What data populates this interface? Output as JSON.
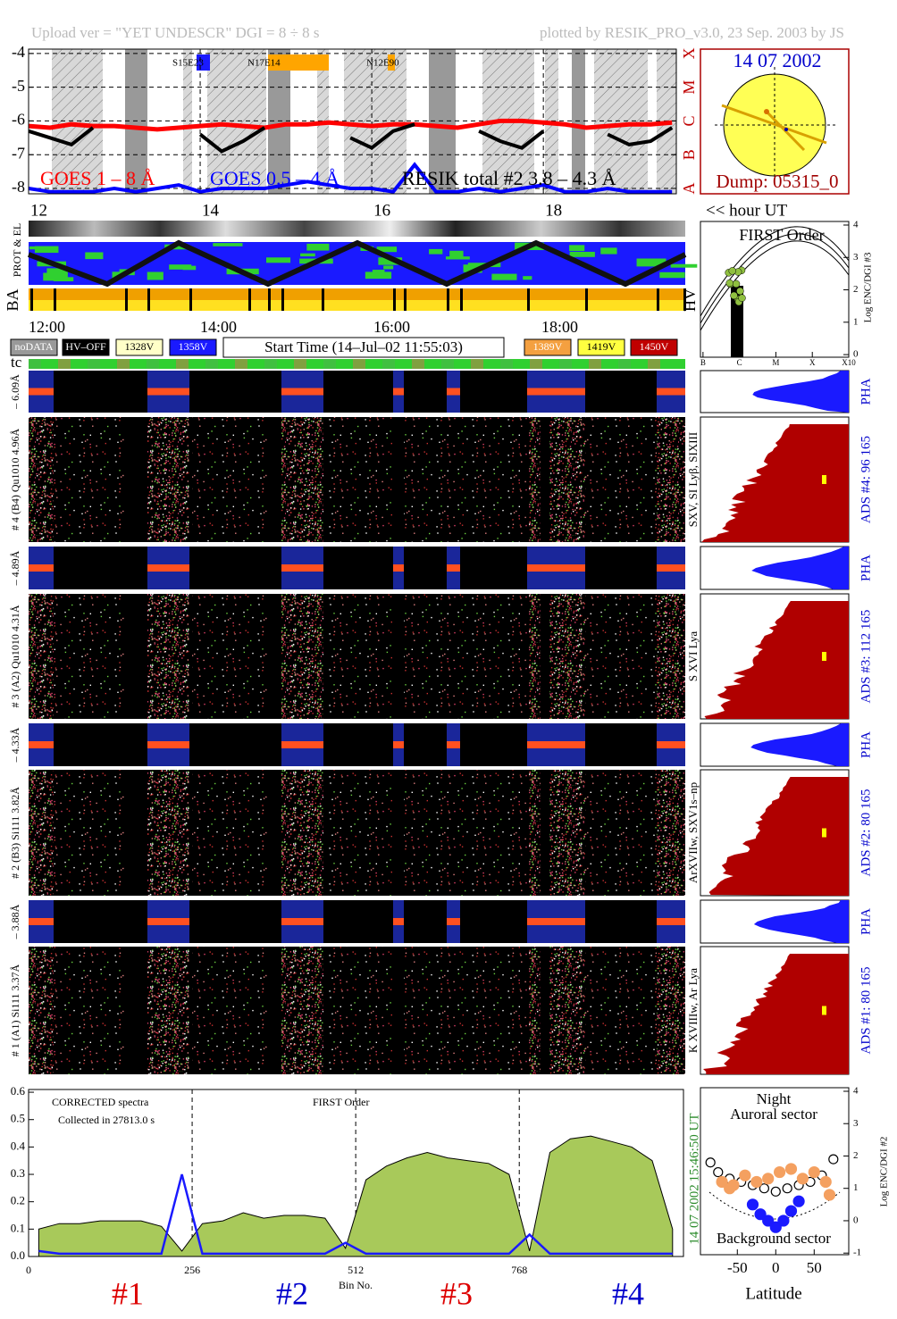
{
  "header": {
    "upload": "Upload ver = \"YET UNDESCR\"  DGI =   8 ÷   8 s",
    "plotted": "plotted by RESIK_PRO_v3.0, 23 Sep. 2003 by JS"
  },
  "sun": {
    "date": "14 07 2002",
    "dump": "Dump: 05315_0"
  },
  "hour_ut": "<< hour UT",
  "strips": {
    "prot": "PROT & EL",
    "ba": "BA",
    "tc": "tc",
    "hv": "HV"
  },
  "time_axis": [
    "12:00",
    "14:00",
    "16:00",
    "18:00"
  ],
  "legend": [
    "noDATA",
    "HV–OFF",
    "1328V",
    "1358V",
    "1389V",
    "1419V",
    "1450V"
  ],
  "start_time": "Start Time (14–Jul–02 11:55:03)",
  "channels": [
    "– 6.09Å",
    "# 4 (B4) Qu1010 4.96Å",
    "– 4.89Å",
    "# 3 (A2) Qu1010 4.31Å",
    "– 4.33Å",
    "# 2 (B3) Si111 3.82Å",
    "– 3.88Å",
    "# 1 (A1) Si111 3.37Å"
  ],
  "pha": [
    "PHA",
    "PHA",
    "PHA",
    "PHA"
  ],
  "ads": [
    "ADS #4:   96 165",
    "ADS #3:   112 165",
    "ADS #2:   80 165",
    "ADS #1:   80 165"
  ],
  "lines": [
    "SXV, SI Lyβ, SIXIII",
    "S XVI Lya",
    "ArXVIIw, SXV1s–np",
    "K XVIIIw, Ar Lya"
  ],
  "timestamp": [
    "15:46:50 UT",
    "14 07 2002"
  ],
  "chart_data": [
    {
      "type": "line",
      "annotations": [
        "S15E23",
        "N17E14",
        "N12E90"
      ],
      "x": [
        12,
        12.25,
        12.5,
        12.75,
        13,
        13.25,
        13.5,
        13.75,
        14,
        14.25,
        14.5,
        14.75,
        15,
        15.25,
        15.5,
        15.75,
        16,
        16.25,
        16.5,
        16.75,
        17,
        17.25,
        17.5,
        17.75,
        18,
        18.25,
        18.5,
        18.75,
        19,
        19.25,
        19.5
      ],
      "series": [
        {
          "name": "GOES 1 – 8 Å",
          "color": "#ff0000",
          "values": [
            -6.15,
            -6.2,
            -6.1,
            -6.15,
            -6.15,
            -6.2,
            -6.25,
            -6.2,
            -6.15,
            -6.1,
            -6.15,
            -6.2,
            -6.1,
            -6.1,
            -6.05,
            -6.1,
            -6.15,
            -6.1,
            -6.1,
            -6.15,
            -6.2,
            -6.1,
            -6.0,
            -6.0,
            -6.05,
            -6.1,
            -6.2,
            -6.15,
            -6.1,
            -6.1,
            -6.05
          ]
        },
        {
          "name": "GOES 0.5 – 4 Å",
          "color": "#0000ff",
          "values": [
            -8.0,
            -8.1,
            -8.1,
            -8.1,
            -8.0,
            -8.1,
            -8.0,
            -7.9,
            -8.1,
            -8.0,
            -8.0,
            -8.0,
            -7.9,
            -7.8,
            -7.9,
            -8.0,
            -8.0,
            -8.1,
            -7.3,
            -8.1,
            -8.1,
            -8.0,
            -8.1,
            -8.0,
            -7.9,
            -8.1,
            -8.1,
            -8.0,
            -8.1,
            -8.1,
            -8.1
          ]
        },
        {
          "name": "RESIK total #2  3.8 – 4.3 Å",
          "color": "#000000",
          "values": [
            -6.3,
            -6.5,
            -6.7,
            -6.2,
            null,
            null,
            null,
            null,
            -6.4,
            -6.9,
            -6.6,
            -6.2,
            null,
            null,
            null,
            -6.5,
            -6.8,
            -6.3,
            -6.1,
            null,
            null,
            -6.3,
            -6.6,
            -6.8,
            -6.3,
            null,
            null,
            -6.4,
            -6.7,
            -6.6,
            -6.2
          ]
        }
      ],
      "xlim": [
        12,
        19.55
      ],
      "xticks": [
        12,
        14,
        16,
        18
      ],
      "ylim": [
        -8.16,
        -3.87
      ],
      "yticks": [
        -4,
        -5,
        -6,
        -7,
        -8
      ],
      "y2lim": [
        -8.16,
        -3.87
      ],
      "y2ticks": [
        {
          "value": -8,
          "label": "A"
        },
        {
          "value": -7,
          "label": "B"
        },
        {
          "value": -6,
          "label": "C"
        },
        {
          "value": -5,
          "label": "M"
        },
        {
          "value": -4,
          "label": "X"
        }
      ],
      "grid": true
    },
    {
      "type": "area",
      "annotations": [
        "CORRECTED spectra",
        "Collected in 27813.0 s",
        "FIRST Order"
      ],
      "xlabel": "Bin No.",
      "channel_labels": [
        "#1",
        "#2",
        "#3",
        "#4"
      ],
      "channel_colors": [
        "#dd0000",
        "#0000cc",
        "#dd0000",
        "#0000cc"
      ],
      "x": [
        16,
        48,
        80,
        112,
        144,
        176,
        208,
        240,
        272,
        304,
        336,
        368,
        400,
        432,
        464,
        496,
        528,
        560,
        592,
        624,
        656,
        688,
        720,
        752,
        784,
        816,
        848,
        880,
        912,
        944,
        976,
        1008
      ],
      "series": [
        {
          "color": "#a8c95a",
          "values": [
            0.1,
            0.12,
            0.12,
            0.13,
            0.13,
            0.13,
            0.11,
            0.02,
            0.12,
            0.13,
            0.16,
            0.14,
            0.15,
            0.15,
            0.14,
            0.03,
            0.28,
            0.33,
            0.36,
            0.38,
            0.36,
            0.35,
            0.34,
            0.3,
            0.02,
            0.38,
            0.43,
            0.44,
            0.42,
            0.4,
            0.35,
            0.1
          ]
        },
        {
          "color": "#1a1aff",
          "values": [
            0.02,
            0.01,
            0.01,
            0.01,
            0.01,
            0.01,
            0.01,
            0.3,
            0.01,
            0.01,
            0.01,
            0.01,
            0.01,
            0.01,
            0.01,
            0.05,
            0.01,
            0.01,
            0.01,
            0.01,
            0.01,
            0.01,
            0.01,
            0.01,
            0.08,
            0.01,
            0.01,
            0.01,
            0.01,
            0.01,
            0.01,
            0.01
          ]
        }
      ],
      "xlim": [
        0,
        1025
      ],
      "xticks": [
        0,
        256,
        512,
        768
      ],
      "ylim": [
        0,
        0.61
      ],
      "yticks": [
        {
          "value": 0,
          "label": "0.0"
        },
        {
          "value": 0.1,
          "label": "0.1"
        },
        {
          "value": 0.2,
          "label": "0.2"
        },
        {
          "value": 0.3,
          "label": "0.3"
        },
        {
          "value": 0.4,
          "label": "0.4"
        },
        {
          "value": 0.5,
          "label": "0.5"
        },
        {
          "value": 0.6,
          "label": "0.6"
        }
      ]
    },
    {
      "type": "scatter",
      "annotations": [
        "Night",
        "Auroral sector",
        "Background sector"
      ],
      "xlabel": "Latitude",
      "y2label": "Log ENC/DGI #2",
      "series": [
        {
          "color": "#000000",
          "x": [
            -85,
            -75,
            -60,
            -45,
            -30,
            -15,
            0,
            15,
            30,
            45,
            60,
            75
          ],
          "values": [
            1.8,
            1.5,
            1.3,
            1.2,
            1.1,
            1.0,
            0.9,
            1.0,
            1.1,
            1.2,
            1.4,
            1.9
          ]
        },
        {
          "color": "#f4a060",
          "x": [
            -70,
            -55,
            -40,
            -25,
            -10,
            5,
            20,
            35,
            50,
            65,
            70,
            -60
          ],
          "values": [
            1.2,
            1.1,
            1.4,
            1.2,
            1.3,
            1.5,
            1.6,
            1.3,
            1.5,
            1.2,
            0.8,
            1.0
          ]
        },
        {
          "color": "#1a1aff",
          "x": [
            -30,
            -20,
            -10,
            0,
            10,
            20,
            30
          ],
          "values": [
            0.5,
            0.2,
            0.0,
            -0.2,
            0.0,
            0.3,
            0.6
          ]
        }
      ],
      "xlim": [
        -98,
        95
      ],
      "xticks": [
        -50,
        0,
        50
      ],
      "y2lim": [
        -1.05,
        4.11
      ],
      "y2ticks": [
        4,
        3,
        2,
        1,
        0,
        -1
      ]
    },
    {
      "type": "hv",
      "title": "FIRST Order",
      "y2label": "Log ENC/DGI #3",
      "xlim": [
        -7.07,
        -3
      ],
      "xticks": [
        {
          "value": -7,
          "label": "B"
        },
        {
          "value": -6,
          "label": "C"
        },
        {
          "value": -5,
          "label": "M"
        },
        {
          "value": -4,
          "label": "X"
        },
        {
          "value": -3,
          "label": "X10"
        }
      ],
      "y2lim": [
        -0.08,
        4.11
      ],
      "y2ticks": [
        4,
        3,
        2,
        1,
        0
      ]
    }
  ]
}
